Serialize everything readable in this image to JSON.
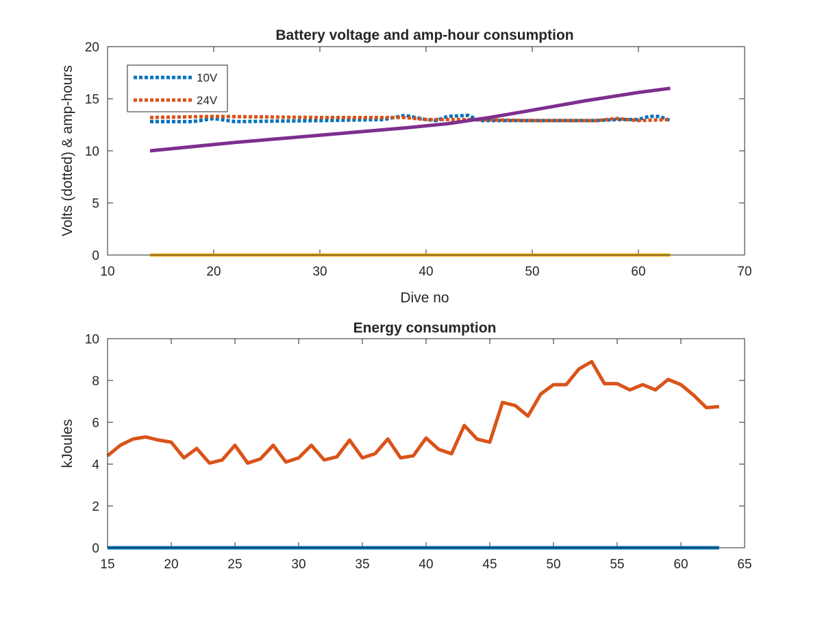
{
  "chart_data": [
    {
      "type": "line",
      "title": "Battery voltage and amp-hour consumption",
      "xlabel": "Dive no",
      "ylabel": "Volts (dotted) & amp-hours",
      "xlim": [
        10,
        70
      ],
      "ylim": [
        0,
        20
      ],
      "xticks": [
        "10",
        "20",
        "30",
        "40",
        "50",
        "60",
        "70"
      ],
      "yticks": [
        "0",
        "5",
        "10",
        "15",
        "20"
      ],
      "legend_position": "top-left",
      "series": [
        {
          "name": "10V",
          "style": "dotted",
          "color": "#0072BD",
          "points": [
            [
              14,
              12.8
            ],
            [
              18,
              12.8
            ],
            [
              20,
              13.1
            ],
            [
              22,
              12.8
            ],
            [
              30,
              12.9
            ],
            [
              36,
              13.0
            ],
            [
              38,
              13.4
            ],
            [
              40,
              13.0
            ],
            [
              41,
              12.9
            ],
            [
              42,
              13.3
            ],
            [
              44,
              13.4
            ],
            [
              45,
              12.9
            ],
            [
              50,
              12.9
            ],
            [
              56,
              12.9
            ],
            [
              58,
              13.0
            ],
            [
              60,
              13.0
            ],
            [
              61,
              13.3
            ],
            [
              62,
              13.3
            ],
            [
              63,
              12.9
            ]
          ]
        },
        {
          "name": "24V",
          "style": "dotted",
          "color": "#D95319",
          "points": [
            [
              14,
              13.2
            ],
            [
              20,
              13.3
            ],
            [
              30,
              13.2
            ],
            [
              38,
              13.2
            ],
            [
              40,
              13.0
            ],
            [
              44,
              13.0
            ],
            [
              50,
              12.9
            ],
            [
              56,
              12.9
            ],
            [
              58,
              13.1
            ],
            [
              60,
              12.9
            ],
            [
              63,
              13.0
            ]
          ]
        },
        {
          "style": "solid",
          "color": "#EDB120",
          "points": [
            [
              14,
              0
            ],
            [
              63,
              0
            ]
          ]
        },
        {
          "style": "solid",
          "color": "#7E2F8E",
          "points": [
            [
              14,
              10.0
            ],
            [
              22,
              10.8
            ],
            [
              30,
              11.5
            ],
            [
              38,
              12.2
            ],
            [
              42,
              12.6
            ],
            [
              46,
              13.2
            ],
            [
              50,
              13.9
            ],
            [
              55,
              14.8
            ],
            [
              60,
              15.6
            ],
            [
              63,
              16.0
            ]
          ]
        }
      ]
    },
    {
      "type": "line",
      "title": "Energy consumption",
      "xlabel": "",
      "ylabel": "kJoules",
      "xlim": [
        15,
        65
      ],
      "ylim": [
        0,
        10
      ],
      "xticks": [
        "15",
        "20",
        "25",
        "30",
        "35",
        "40",
        "45",
        "50",
        "55",
        "60",
        "65"
      ],
      "yticks": [
        "0",
        "2",
        "4",
        "6",
        "8",
        "10"
      ],
      "series": [
        {
          "style": "solid",
          "color": "#D95319",
          "x": [
            15,
            16,
            17,
            18,
            19,
            20,
            21,
            22,
            23,
            24,
            25,
            26,
            27,
            28,
            29,
            30,
            31,
            32,
            33,
            34,
            35,
            36,
            37,
            38,
            39,
            40,
            41,
            42,
            43,
            44,
            45,
            46,
            47,
            48,
            49,
            50,
            51,
            52,
            53,
            54,
            55,
            56,
            57,
            58,
            59,
            60,
            61,
            62,
            63
          ],
          "values": [
            4.4,
            4.9,
            5.2,
            5.3,
            5.15,
            5.05,
            4.3,
            4.75,
            4.05,
            4.2,
            4.9,
            4.05,
            4.25,
            4.9,
            4.1,
            4.3,
            4.9,
            4.2,
            4.35,
            5.15,
            4.3,
            4.5,
            5.2,
            4.3,
            4.4,
            5.25,
            4.7,
            4.5,
            5.85,
            5.2,
            5.05,
            6.95,
            6.8,
            6.3,
            7.35,
            7.8,
            7.8,
            8.55,
            8.9,
            7.85,
            7.85,
            7.55,
            7.8,
            7.55,
            8.05,
            7.8,
            7.3,
            6.7,
            6.75
          ]
        },
        {
          "style": "solid",
          "color": "#0072BD",
          "x": [
            15,
            63
          ],
          "values": [
            0,
            0
          ]
        }
      ]
    }
  ]
}
